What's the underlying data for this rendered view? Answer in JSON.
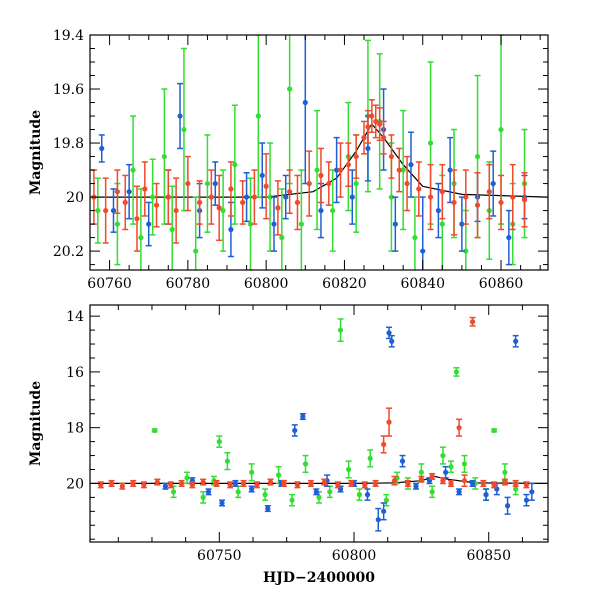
{
  "chart_data": [
    {
      "type": "scatter",
      "title": "",
      "xlabel": "",
      "ylabel": "Magnitude",
      "xlim": [
        60755,
        60872
      ],
      "ylim": [
        20.27,
        19.4
      ],
      "y_inverted": true,
      "grid": false,
      "xticks": [
        "60760",
        "60780",
        "60800",
        "60820",
        "60840",
        "60860"
      ],
      "yticks": [
        "19.4",
        "19.6",
        "19.8",
        "20",
        "20.2"
      ],
      "colors": {
        "green": "#33dd33",
        "blue": "#1f5fd6",
        "red": "#f04a2c"
      },
      "model_curve": {
        "x": [
          60755,
          60780,
          60800,
          60812,
          60818,
          60823,
          60827,
          60830,
          60835,
          60840,
          60850,
          60872
        ],
        "y": [
          20.0,
          20.0,
          20.0,
          19.98,
          19.93,
          19.83,
          19.73,
          19.78,
          19.88,
          19.96,
          19.99,
          20.0
        ]
      },
      "series": [
        {
          "color": "green",
          "x": [
            60757,
            60762,
            60766,
            60768,
            60771,
            60774,
            60776,
            60779,
            60782,
            60785,
            60789,
            60792,
            60796,
            60798,
            60801,
            60804,
            60806,
            60809,
            60813,
            60817,
            60821,
            60823,
            60826,
            60829,
            60832,
            60835,
            60838,
            60842,
            60845,
            60848,
            60851,
            60854,
            60857,
            60860,
            60863,
            60866
          ],
          "y": [
            20.05,
            20.1,
            19.9,
            20.15,
            20.0,
            19.85,
            20.12,
            19.75,
            20.2,
            19.95,
            20.05,
            19.88,
            20.1,
            19.7,
            20.0,
            20.15,
            19.6,
            20.1,
            19.9,
            20.05,
            19.85,
            19.95,
            19.7,
            19.72,
            20.0,
            19.9,
            20.15,
            19.8,
            20.1,
            19.95,
            20.2,
            19.85,
            20.05,
            19.75,
            20.1,
            19.95
          ],
          "err": [
            0.12,
            0.15,
            0.2,
            0.18,
            0.14,
            0.25,
            0.16,
            0.3,
            0.2,
            0.18,
            0.15,
            0.22,
            0.17,
            0.3,
            0.2,
            0.18,
            0.35,
            0.2,
            0.22,
            0.15,
            0.2,
            0.18,
            0.28,
            0.25,
            0.2,
            0.22,
            0.15,
            0.3,
            0.18,
            0.2,
            0.15,
            0.3,
            0.18,
            0.35,
            0.15,
            0.2
          ]
        },
        {
          "color": "blue",
          "x": [
            60758,
            60761,
            60765,
            60770,
            60775,
            60778,
            60783,
            60787,
            60791,
            60795,
            60799,
            60802,
            60805,
            60810,
            60814,
            60818,
            60822,
            60826,
            60830,
            60833,
            60837,
            60840,
            60844,
            60847,
            60850,
            60854,
            60858,
            60862,
            60866
          ],
          "y": [
            19.82,
            20.05,
            19.98,
            20.1,
            20.0,
            19.7,
            20.05,
            19.95,
            20.12,
            20.0,
            19.92,
            20.1,
            20.0,
            19.65,
            20.05,
            19.9,
            20.0,
            19.82,
            19.75,
            20.1,
            19.88,
            20.2,
            20.05,
            19.9,
            20.1,
            20.0,
            19.95,
            20.15,
            20.0
          ],
          "err": [
            0.05,
            0.08,
            0.1,
            0.08,
            0.1,
            0.12,
            0.1,
            0.08,
            0.1,
            0.09,
            0.12,
            0.1,
            0.08,
            0.3,
            0.1,
            0.12,
            0.1,
            0.12,
            0.15,
            0.1,
            0.12,
            0.2,
            0.1,
            0.12,
            0.1,
            0.09,
            0.12,
            0.1,
            0.08
          ]
        },
        {
          "color": "red",
          "x": [
            60756,
            60759,
            60762,
            60764,
            60767,
            60769,
            60772,
            60775,
            60777,
            60780,
            60783,
            60786,
            60788,
            60791,
            60794,
            60797,
            60800,
            60803,
            60806,
            60808,
            60811,
            60814,
            60816,
            60819,
            60821,
            60823,
            60825,
            60826,
            60827,
            60828,
            60829,
            60830,
            60832,
            60834,
            60836,
            60839,
            60842,
            60845,
            60848,
            60851,
            60854,
            60857,
            60860,
            60863,
            60866
          ],
          "y": [
            20.0,
            20.05,
            19.98,
            20.02,
            20.08,
            19.97,
            20.03,
            20.0,
            20.05,
            19.95,
            20.02,
            20.0,
            20.04,
            19.97,
            20.02,
            20.0,
            19.96,
            20.04,
            19.98,
            20.02,
            19.95,
            19.92,
            19.95,
            19.9,
            19.88,
            19.85,
            19.78,
            19.74,
            19.7,
            19.72,
            19.73,
            19.78,
            19.85,
            19.9,
            19.95,
            19.97,
            20.0,
            19.98,
            20.02,
            20.0,
            20.03,
            19.98,
            20.02,
            20.0,
            20.01
          ],
          "err": [
            0.1,
            0.12,
            0.08,
            0.1,
            0.12,
            0.1,
            0.08,
            0.1,
            0.12,
            0.1,
            0.08,
            0.1,
            0.12,
            0.1,
            0.08,
            0.1,
            0.12,
            0.1,
            0.08,
            0.1,
            0.12,
            0.1,
            0.08,
            0.1,
            0.08,
            0.08,
            0.06,
            0.06,
            0.06,
            0.06,
            0.06,
            0.06,
            0.08,
            0.08,
            0.1,
            0.1,
            0.12,
            0.1,
            0.12,
            0.1,
            0.12,
            0.1,
            0.1,
            0.12,
            0.1
          ]
        }
      ]
    },
    {
      "type": "scatter",
      "title": "",
      "xlabel": "HJD−2400000",
      "ylabel": "Magnitude",
      "xlim": [
        60702,
        60872
      ],
      "ylim": [
        22.1,
        13.6
      ],
      "y_inverted": true,
      "grid": false,
      "xticks": [
        "60750",
        "60800",
        "60850"
      ],
      "yticks": [
        "14",
        "16",
        "18",
        "20"
      ],
      "colors": {
        "green": "#33dd33",
        "blue": "#1f5fd6",
        "red": "#f04a2c"
      },
      "model_curve": {
        "x": [
          60702,
          60800,
          60815,
          60825,
          60830,
          60835,
          60845,
          60872
        ],
        "y": [
          20.0,
          20.0,
          19.98,
          19.9,
          19.75,
          19.85,
          19.98,
          20.0
        ]
      },
      "series": [
        {
          "color": "green",
          "x": [
            60726,
            60733,
            60738,
            60744,
            60748,
            60750,
            60753,
            60757,
            60762,
            60767,
            60772,
            60777,
            60782,
            60787,
            60791,
            60795,
            60798,
            60802,
            60806,
            60812,
            60816,
            60820,
            60825,
            60829,
            60833,
            60836,
            60838,
            60841,
            60845,
            60849,
            60852,
            60856,
            60860
          ],
          "y": [
            18.1,
            20.3,
            19.8,
            20.5,
            19.9,
            18.5,
            19.2,
            20.3,
            19.6,
            20.4,
            19.7,
            20.6,
            19.3,
            20.5,
            20.3,
            14.5,
            19.5,
            20.4,
            19.1,
            20.6,
            19.8,
            20.0,
            19.6,
            20.3,
            19.0,
            19.4,
            16.0,
            19.3,
            20.0,
            20.4,
            18.1,
            19.6,
            20.2
          ],
          "err": [
            0.05,
            0.2,
            0.2,
            0.2,
            0.15,
            0.2,
            0.3,
            0.2,
            0.3,
            0.2,
            0.3,
            0.2,
            0.3,
            0.2,
            0.2,
            0.4,
            0.3,
            0.2,
            0.3,
            0.2,
            0.2,
            0.2,
            0.3,
            0.2,
            0.3,
            0.2,
            0.15,
            0.3,
            0.2,
            0.2,
            0.05,
            0.3,
            0.2
          ]
        },
        {
          "color": "blue",
          "x": [
            60730,
            60740,
            60746,
            60751,
            60756,
            60762,
            60768,
            60773,
            60778,
            60781,
            60786,
            60790,
            60795,
            60800,
            60805,
            60809,
            60811,
            60813,
            60814,
            60818,
            60823,
            60828,
            60834,
            60839,
            60844,
            60849,
            60853,
            60857,
            60860,
            60864,
            60866
          ],
          "y": [
            20.1,
            19.9,
            20.3,
            20.7,
            20.0,
            20.2,
            20.9,
            20.0,
            18.1,
            17.6,
            20.3,
            19.9,
            20.2,
            20.0,
            20.4,
            21.3,
            21.0,
            14.6,
            14.9,
            19.2,
            20.1,
            19.9,
            19.6,
            20.3,
            20.0,
            20.4,
            20.2,
            20.8,
            14.9,
            20.6,
            20.3
          ],
          "err": [
            0.1,
            0.1,
            0.1,
            0.1,
            0.1,
            0.1,
            0.1,
            0.1,
            0.2,
            0.1,
            0.1,
            0.2,
            0.1,
            0.1,
            0.2,
            0.4,
            0.3,
            0.2,
            0.2,
            0.2,
            0.1,
            0.1,
            0.2,
            0.1,
            0.1,
            0.2,
            0.2,
            0.3,
            0.2,
            0.2,
            0.3
          ]
        },
        {
          "color": "red",
          "x": [
            60706,
            60710,
            60714,
            60718,
            60722,
            60727,
            60732,
            60736,
            60740,
            60744,
            60749,
            60754,
            60759,
            60764,
            60769,
            60774,
            60779,
            60784,
            60789,
            60794,
            60799,
            60804,
            60808,
            60811,
            60813,
            60815,
            60820,
            60825,
            60829,
            60833,
            60836,
            60839,
            60841,
            60844,
            60848,
            60852,
            60856,
            60860,
            60864
          ],
          "y": [
            20.05,
            20.0,
            20.1,
            20.0,
            20.05,
            19.95,
            20.05,
            20.0,
            20.05,
            19.95,
            20.0,
            20.05,
            20.0,
            20.05,
            19.95,
            20.0,
            20.05,
            20.0,
            19.95,
            20.05,
            20.0,
            20.05,
            20.0,
            18.6,
            17.8,
            19.9,
            20.0,
            19.85,
            19.75,
            19.9,
            20.0,
            18.0,
            19.9,
            14.2,
            20.0,
            20.05,
            19.95,
            20.0,
            20.05
          ],
          "err": [
            0.1,
            0.1,
            0.1,
            0.1,
            0.1,
            0.1,
            0.1,
            0.1,
            0.1,
            0.1,
            0.1,
            0.1,
            0.1,
            0.1,
            0.1,
            0.1,
            0.1,
            0.1,
            0.1,
            0.1,
            0.1,
            0.1,
            0.1,
            0.3,
            0.5,
            0.15,
            0.1,
            0.1,
            0.1,
            0.1,
            0.1,
            0.3,
            0.2,
            0.15,
            0.1,
            0.1,
            0.1,
            0.1,
            0.1
          ]
        }
      ]
    }
  ]
}
